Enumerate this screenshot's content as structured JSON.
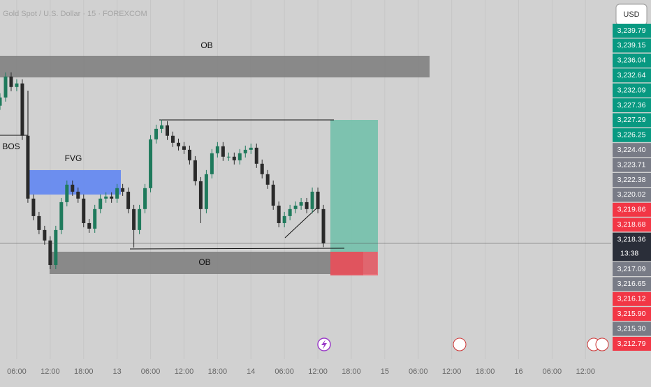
{
  "header": {
    "symbol": "Gold Spot / U.S. Dollar · 15 · FOREXCOM",
    "currency": "USD"
  },
  "chart_data": {
    "type": "candlestick",
    "x": [
      -3,
      -2,
      -1,
      0,
      1,
      2,
      3,
      4,
      5,
      6,
      7,
      8,
      9,
      10,
      11,
      12,
      13,
      14,
      15,
      16,
      17,
      18,
      19,
      20,
      21,
      22,
      23,
      24,
      25,
      26,
      27,
      28,
      29,
      30,
      31,
      32,
      33,
      34,
      35,
      36,
      37,
      38,
      39,
      40,
      41,
      42,
      43,
      44,
      45,
      46,
      47,
      48,
      49,
      50,
      51,
      52,
      53,
      54,
      55
    ],
    "open": [
      3231.5,
      3232.29,
      3234.29,
      3233.29,
      3233.63,
      3228.63,
      3222.63,
      3220.96,
      3219.63,
      3218.63,
      3216.29,
      3219.63,
      3222.29,
      3223.96,
      3223.29,
      3222.63,
      3220.29,
      3219.76,
      3221.63,
      3222.63,
      3222.83,
      3222.63,
      3223.63,
      3223.29,
      3221.63,
      3219.63,
      3221.63,
      3223.63,
      3228.29,
      3229.29,
      3229.63,
      3228.63,
      3227.96,
      3227.63,
      3227.29,
      3226.29,
      3224.29,
      3221.63,
      3224.96,
      3226.96,
      3227.63,
      3226.63,
      3226.63,
      3226.29,
      3226.96,
      3227.29,
      3227.49,
      3225.96,
      3224.96,
      3223.96,
      3221.96,
      3220.29,
      3220.96,
      3221.63,
      3221.96,
      3222.29,
      3221.63,
      3223.29,
      3221.63
    ],
    "high": [
      3232.69,
      3234.69,
      3234.69,
      3234.03,
      3234.03,
      3229.03,
      3223.03,
      3221.36,
      3220.03,
      3219.03,
      3220.03,
      3222.69,
      3224.36,
      3224.36,
      3223.69,
      3223.03,
      3220.69,
      3222.03,
      3223.03,
      3223.23,
      3223.23,
      3224.03,
      3224.03,
      3223.69,
      3222.03,
      3222.03,
      3224.03,
      3228.69,
      3229.69,
      3230.16,
      3230.03,
      3229.03,
      3228.36,
      3228.03,
      3227.69,
      3226.69,
      3224.69,
      3225.36,
      3227.36,
      3228.03,
      3228.03,
      3227.03,
      3227.03,
      3227.36,
      3227.69,
      3227.89,
      3227.89,
      3226.36,
      3225.36,
      3224.36,
      3222.36,
      3221.36,
      3222.03,
      3222.36,
      3222.69,
      3222.69,
      3223.69,
      3223.69,
      3222.03
    ],
    "low": [
      3231.1,
      3231.89,
      3232.89,
      3232.89,
      3228.23,
      3222.23,
      3220.56,
      3219.23,
      3218.23,
      3215.89,
      3215.89,
      3219.23,
      3221.89,
      3222.89,
      3222.23,
      3219.89,
      3219.36,
      3219.36,
      3221.23,
      3222.23,
      3222.23,
      3222.23,
      3222.89,
      3221.23,
      3217.96,
      3219.23,
      3221.23,
      3223.23,
      3227.89,
      3228.89,
      3228.23,
      3227.56,
      3227.23,
      3226.89,
      3225.89,
      3223.89,
      3220.29,
      3221.23,
      3224.56,
      3226.56,
      3226.23,
      3226.23,
      3225.89,
      3225.89,
      3226.56,
      3226.89,
      3225.56,
      3224.56,
      3223.56,
      3221.56,
      3219.89,
      3219.89,
      3220.56,
      3221.23,
      3221.56,
      3221.23,
      3221.23,
      3221.23,
      3218.0
    ],
    "close": [
      3232.29,
      3234.29,
      3233.29,
      3233.63,
      3228.63,
      3222.63,
      3220.96,
      3219.63,
      3218.63,
      3216.29,
      3219.63,
      3222.29,
      3223.96,
      3223.29,
      3222.63,
      3220.29,
      3219.76,
      3221.63,
      3222.63,
      3222.83,
      3222.63,
      3223.63,
      3223.29,
      3221.63,
      3219.63,
      3221.63,
      3223.63,
      3228.29,
      3229.29,
      3229.63,
      3228.63,
      3227.96,
      3227.63,
      3227.29,
      3226.29,
      3224.29,
      3221.63,
      3224.96,
      3226.96,
      3227.63,
      3226.63,
      3226.63,
      3226.29,
      3226.96,
      3227.29,
      3227.49,
      3225.96,
      3224.96,
      3223.96,
      3221.96,
      3220.29,
      3220.96,
      3221.63,
      3221.96,
      3222.29,
      3221.63,
      3223.29,
      3221.63,
      3218.36
    ],
    "up_color": "#1f7a5c",
    "down_color": "#2a2a2a",
    "xlim": [
      -3,
      106.6
    ],
    "ylim": [
      3207.3,
      3241.6
    ],
    "grid": true,
    "xticks": [
      {
        "value": 0,
        "label": "06:00"
      },
      {
        "value": 6,
        "label": "12:00"
      },
      {
        "value": 12,
        "label": "18:00"
      },
      {
        "value": 18,
        "label": "13"
      },
      {
        "value": 24,
        "label": "06:00"
      },
      {
        "value": 30,
        "label": "12:00"
      },
      {
        "value": 36,
        "label": "18:00"
      },
      {
        "value": 42,
        "label": "14"
      },
      {
        "value": 48,
        "label": "06:00"
      },
      {
        "value": 54,
        "label": "12:00"
      },
      {
        "value": 60,
        "label": "18:00"
      },
      {
        "value": 66,
        "label": "15"
      },
      {
        "value": 72,
        "label": "06:00"
      },
      {
        "value": 78,
        "label": "12:00"
      },
      {
        "value": 84,
        "label": "18:00"
      },
      {
        "value": 90,
        "label": "16"
      },
      {
        "value": 96,
        "label": "06:00"
      },
      {
        "value": 102,
        "label": "12:00"
      }
    ],
    "annotations": [
      "OB",
      "BOS",
      "FVG",
      "OB"
    ],
    "countdown": "13:38",
    "price_badges": [
      {
        "value": 3239.79,
        "label": "3,239.79",
        "color": "#089981"
      },
      {
        "value": 3239.15,
        "label": "3,239.15",
        "color": "#089981"
      },
      {
        "value": 3236.04,
        "label": "3,236.04",
        "color": "#089981"
      },
      {
        "value": 3232.64,
        "label": "3,232.64",
        "color": "#089981"
      },
      {
        "value": 3232.09,
        "label": "3,232.09",
        "color": "#089981"
      },
      {
        "value": 3227.36,
        "label": "3,227.36",
        "color": "#089981"
      },
      {
        "value": 3227.29,
        "label": "3,227.29",
        "color": "#089981"
      },
      {
        "value": 3226.25,
        "label": "3,226.25",
        "color": "#089981"
      },
      {
        "value": 3224.4,
        "label": "3,224.40",
        "color": "#787b86"
      },
      {
        "value": 3223.71,
        "label": "3,223.71",
        "color": "#787b86"
      },
      {
        "value": 3222.38,
        "label": "3,222.38",
        "color": "#787b86"
      },
      {
        "value": 3220.02,
        "label": "3,220.02",
        "color": "#787b86"
      },
      {
        "value": 3219.86,
        "label": "3,219.86",
        "color": "#f23645"
      },
      {
        "value": 3218.68,
        "label": "3,218.68",
        "color": "#f23645"
      },
      {
        "value": 3218.36,
        "label": "3,218.36",
        "color": "#2a2e39"
      },
      {
        "value": 3217.09,
        "label": "3,217.09",
        "color": "#787b86"
      },
      {
        "value": 3216.65,
        "label": "3,216.65",
        "color": "#787b86"
      },
      {
        "value": 3216.12,
        "label": "3,216.12",
        "color": "#f23645"
      },
      {
        "value": 3215.9,
        "label": "3,215.90",
        "color": "#f23645"
      },
      {
        "value": 3215.3,
        "label": "3,215.30",
        "color": "#787b86"
      },
      {
        "value": 3212.79,
        "label": "3,212.79",
        "color": "#f23645"
      }
    ]
  }
}
